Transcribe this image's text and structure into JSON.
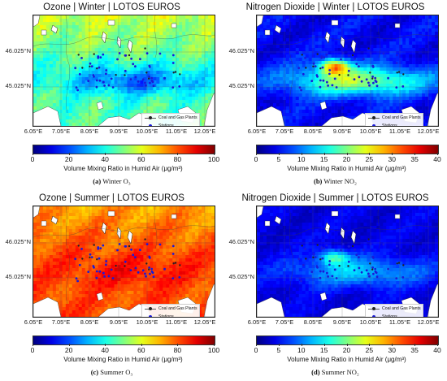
{
  "panels": [
    {
      "id": "a",
      "title": "Ozone | Winter | LOTOS EUROS",
      "caption_letter": "(a)",
      "caption_text": "Winter O₃",
      "colorbar_label": "Volume Mixing Ratio in Humid Air (μg/m³)",
      "colorbar_ticks": [
        "0",
        "20",
        "40",
        "60",
        "80",
        "100"
      ],
      "colormap": "jet",
      "pollutant": "O3",
      "season": "winter"
    },
    {
      "id": "b",
      "title": "Nitrogen Dioxide | Winter | LOTOS EUROS",
      "caption_letter": "(b)",
      "caption_text": "Winter NO₂",
      "colorbar_label": "Volume Mixing Ratio in Humid Air (μg/m³)",
      "colorbar_ticks": [
        "0",
        "5",
        "10",
        "15",
        "20",
        "25",
        "30",
        "35",
        "40"
      ],
      "colormap": "jet",
      "pollutant": "NO2",
      "season": "winter"
    },
    {
      "id": "c",
      "title": "Ozone | Summer | LOTOS EUROS",
      "caption_letter": "(c)",
      "caption_text": "Summer O₃",
      "colorbar_label": "Volume Mixing Ratio in Humid Air (μg/m³)",
      "colorbar_ticks": [
        "0",
        "20",
        "40",
        "60",
        "80",
        "100"
      ],
      "colormap": "jet",
      "pollutant": "O3",
      "season": "summer"
    },
    {
      "id": "d",
      "title": "Nitrogen Dioxide | Summer | LOTOS EUROS",
      "caption_letter": "(d)",
      "caption_text": "Summer NO₂",
      "colorbar_label": "Volume Mixing Ratio in Humid Air (μg/m³)",
      "colorbar_ticks": [
        "0",
        "5",
        "10",
        "15",
        "20",
        "25",
        "30",
        "35",
        "40"
      ],
      "colormap": "jet",
      "pollutant": "NO2",
      "season": "summer"
    }
  ],
  "lat_labels": [
    "46.025°N",
    "45.025°N"
  ],
  "lon_labels": [
    "6.05°E",
    "7.05°E",
    "8.05°E",
    "9.05°E",
    "10.05°E",
    "11.05°E",
    "12.05°E"
  ],
  "legend": {
    "plants": "Coal and Gas Plants",
    "stations": "Stations"
  },
  "colors": {
    "stations": "#1a1ad8",
    "plants": "#222222"
  }
}
